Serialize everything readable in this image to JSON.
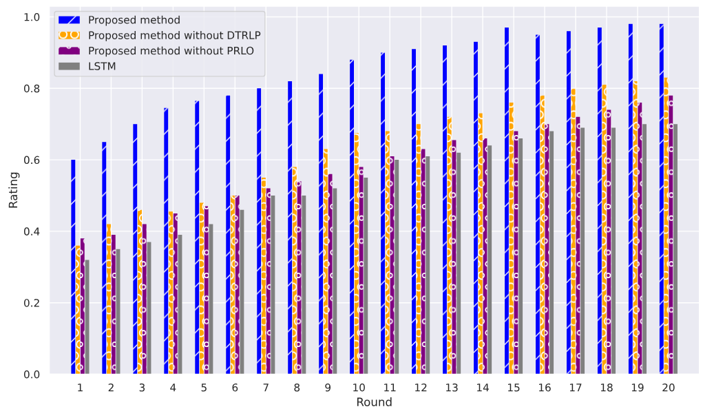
{
  "chart_data": {
    "type": "bar",
    "xlabel": "Round",
    "ylabel": "Rating",
    "categories": [
      "1",
      "2",
      "3",
      "4",
      "5",
      "6",
      "7",
      "8",
      "9",
      "10",
      "11",
      "12",
      "13",
      "14",
      "15",
      "16",
      "17",
      "18",
      "19",
      "20"
    ],
    "series": [
      {
        "name": "Proposed method",
        "color": "#0000ff",
        "values": [
          0.6,
          0.65,
          0.7,
          0.745,
          0.765,
          0.78,
          0.8,
          0.82,
          0.84,
          0.88,
          0.9,
          0.91,
          0.92,
          0.93,
          0.97,
          0.95,
          0.96,
          0.97,
          0.98,
          0.98
        ]
      },
      {
        "name": "Proposed method without DTRLP",
        "color": "#ffa500",
        "values": [
          0.36,
          0.42,
          0.46,
          0.455,
          0.48,
          0.5,
          0.55,
          0.58,
          0.63,
          0.675,
          0.68,
          0.7,
          0.72,
          0.73,
          0.76,
          0.78,
          0.8,
          0.81,
          0.82,
          0.83
        ]
      },
      {
        "name": "Proposed method without PRLO",
        "color": "#800080",
        "values": [
          0.38,
          0.39,
          0.42,
          0.45,
          0.47,
          0.5,
          0.52,
          0.54,
          0.56,
          0.58,
          0.61,
          0.63,
          0.655,
          0.66,
          0.68,
          0.7,
          0.72,
          0.74,
          0.76,
          0.78
        ]
      },
      {
        "name": "LSTM",
        "color": "#808080",
        "values": [
          0.32,
          0.35,
          0.37,
          0.39,
          0.42,
          0.46,
          0.5,
          0.5,
          0.52,
          0.55,
          0.6,
          0.61,
          0.62,
          0.64,
          0.66,
          0.68,
          0.69,
          0.69,
          0.7,
          0.7
        ]
      }
    ],
    "ylim": [
      0,
      1.03
    ],
    "yticks": [
      {
        "value": 0,
        "label": "0.0"
      },
      {
        "value": 0.2,
        "label": "0.2"
      },
      {
        "value": 0.4,
        "label": "0.4"
      },
      {
        "value": 0.6,
        "label": "0.6"
      },
      {
        "value": 0.8,
        "label": "0.8"
      },
      {
        "value": 1.0,
        "label": "1.0"
      }
    ],
    "grid": true,
    "legend": "top left"
  }
}
